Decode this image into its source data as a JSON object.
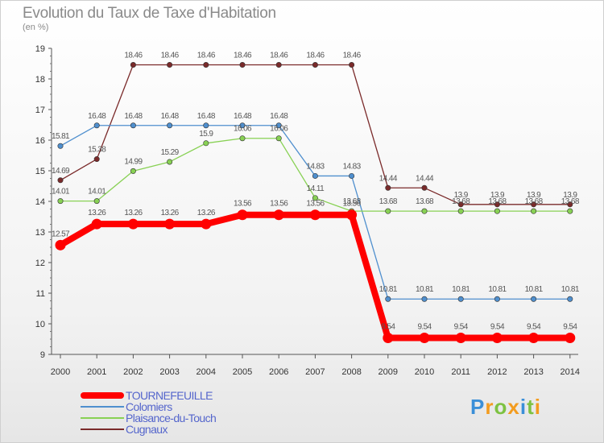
{
  "chart_data": {
    "type": "line",
    "title": "Evolution du Taux de Taxe d'Habitation",
    "subtitle": "(en %)",
    "x": [
      "2000",
      "2001",
      "2002",
      "2003",
      "2004",
      "2005",
      "2006",
      "2007",
      "2008",
      "2009",
      "2010",
      "2011",
      "2012",
      "2013",
      "2014"
    ],
    "y_ticks": [
      "9",
      "10",
      "11",
      "12",
      "13",
      "14",
      "15",
      "16",
      "17",
      "18",
      "19"
    ],
    "ylim": [
      9,
      19
    ],
    "series": [
      {
        "name": "Cugnaux",
        "color": "#7a2a2a",
        "values": [
          14.69,
          15.38,
          18.46,
          18.46,
          18.46,
          18.46,
          18.46,
          18.46,
          18.46,
          14.44,
          14.44,
          13.9,
          13.9,
          13.9,
          13.9
        ],
        "labels": [
          "14.69",
          "15.38",
          "18.46",
          "18.46",
          "18.46",
          "18.46",
          "18.46",
          "18.46",
          "18.46",
          "14.44",
          "14.44",
          "13.9",
          "13.9",
          "13.9",
          "13.9"
        ]
      },
      {
        "name": "Colomiers",
        "color": "#4f8fce",
        "values": [
          15.81,
          16.48,
          16.48,
          16.48,
          16.48,
          16.48,
          16.48,
          14.83,
          14.83,
          10.81,
          10.81,
          10.81,
          10.81,
          10.81,
          10.81
        ],
        "labels": [
          "15.81",
          "16.48",
          "16.48",
          "16.48",
          "16.48",
          "16.48",
          "16.48",
          "14.83",
          "14.83",
          "10.81",
          "10.81",
          "10.81",
          "10.81",
          "10.81",
          "10.81"
        ]
      },
      {
        "name": "Plaisance-du-Touch",
        "color": "#88d154",
        "values": [
          14.01,
          14.01,
          14.99,
          15.29,
          15.9,
          16.06,
          16.06,
          14.11,
          13.68,
          13.68,
          13.68,
          13.68,
          13.68,
          13.68,
          13.68
        ],
        "labels": [
          "14.01",
          "14.01",
          "14.99",
          "15.29",
          "15.9",
          "16.06",
          "16.06",
          "14.11",
          "13.68",
          "13.68",
          "13.68",
          "13.68",
          "13.68",
          "13.68",
          "13.68"
        ]
      },
      {
        "name": "TOURNEFEUILLE",
        "color": "#ff0000",
        "values": [
          12.57,
          13.26,
          13.26,
          13.26,
          13.26,
          13.56,
          13.56,
          13.56,
          13.56,
          9.54,
          9.54,
          9.54,
          9.54,
          9.54,
          9.54
        ],
        "labels": [
          "12.57",
          "13.26",
          "13.26",
          "13.26",
          "13.26",
          "13.56",
          "13.56",
          "13.56",
          "13.56",
          "9.54",
          "9.54",
          "9.54",
          "9.54",
          "9.54",
          "9.54"
        ]
      }
    ],
    "legend_order": [
      "TOURNEFEUILLE",
      "Colomiers",
      "Plaisance-du-Touch",
      "Cugnaux"
    ],
    "legend_position": "bottom-left",
    "grid": false
  },
  "logo": {
    "letters": [
      "P",
      "r",
      "o",
      "x",
      "i",
      "t",
      "i"
    ],
    "colors": [
      "#3a8fd8",
      "#f39c1f",
      "#7dc242",
      "#f39c1f",
      "#3a8fd8",
      "#7dc242",
      "#f39c1f"
    ]
  }
}
